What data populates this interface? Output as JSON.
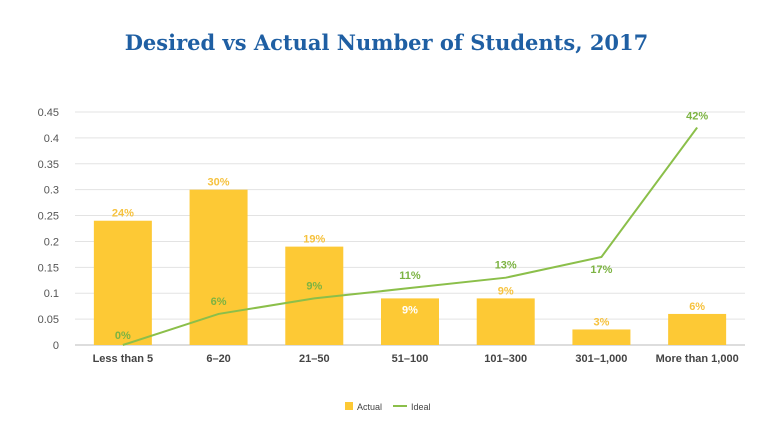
{
  "chart_data": {
    "type": "bar",
    "title": "Desired vs Actual Number of Students, 2017",
    "xlabel": "",
    "ylabel": "",
    "ylim": [
      0,
      0.45
    ],
    "yticks": [
      "0",
      "0.05",
      "0.1",
      "0.15",
      "0.2",
      "0.25",
      "0.3",
      "0.35",
      "0.4",
      "0.45"
    ],
    "categories": [
      "Less than 5",
      "6–20",
      "21–50",
      "51–100",
      "101–300",
      "301–1,000",
      "More than 1,000"
    ],
    "series": [
      {
        "name": "Actual",
        "type": "bar",
        "color": "#fdc935",
        "values": [
          0.24,
          0.3,
          0.19,
          0.09,
          0.09,
          0.03,
          0.06
        ],
        "labels": [
          "24%",
          "30%",
          "19%",
          "9%",
          "9%",
          "3%",
          "6%"
        ]
      },
      {
        "name": "Ideal",
        "type": "line",
        "color": "#8bbf4a",
        "values": [
          0.0,
          0.06,
          0.09,
          0.11,
          0.13,
          0.17,
          0.42
        ],
        "labels": [
          "0%",
          "6%",
          "9%",
          "11%",
          "13%",
          "17%",
          "42%"
        ]
      }
    ],
    "grid": true,
    "legend": "bottom"
  }
}
